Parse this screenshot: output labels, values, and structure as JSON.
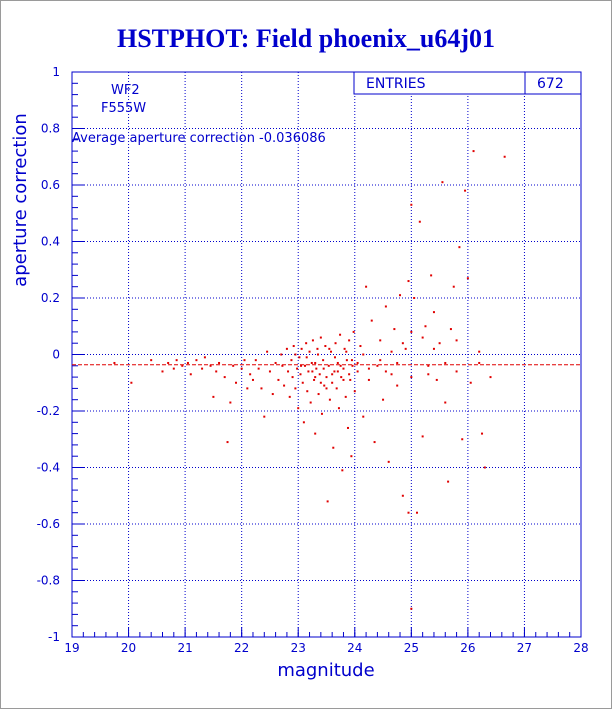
{
  "page": {
    "title": "HSTPHOT: Field phoenix_u64j01"
  },
  "chart_data": {
    "type": "scatter",
    "title": "HSTPHOT: Field phoenix_u64j01",
    "xlabel": "magnitude",
    "ylabel": "aperture correction",
    "xlim": [
      19,
      28
    ],
    "ylim": [
      -1,
      1
    ],
    "x_ticks": [
      "19",
      "20",
      "21",
      "22",
      "23",
      "24",
      "25",
      "26",
      "27",
      "28"
    ],
    "y_ticks": [
      "1",
      "0.8",
      "0.6",
      "0.4",
      "0.2",
      "0",
      "-0.2",
      "-0.4",
      "-0.6",
      "-0.8",
      "-1"
    ],
    "grid": true,
    "series_color": "#e00000",
    "line_color": "#0000cc",
    "stats": {
      "label": "ENTRIES",
      "value": "672"
    },
    "annotations": {
      "chip": "WF2",
      "filter": "F555W",
      "average_text": "Average aperture correction -0.036086"
    },
    "average_y": -0.036086,
    "points": [
      [
        19.75,
        -0.03
      ],
      [
        20.05,
        -0.1
      ],
      [
        20.4,
        -0.02
      ],
      [
        20.6,
        -0.06
      ],
      [
        20.7,
        -0.03
      ],
      [
        20.8,
        -0.05
      ],
      [
        20.85,
        -0.02
      ],
      [
        20.95,
        -0.04
      ],
      [
        21.05,
        -0.03
      ],
      [
        21.1,
        -0.07
      ],
      [
        21.2,
        -0.02
      ],
      [
        21.3,
        -0.05
      ],
      [
        21.35,
        -0.01
      ],
      [
        21.45,
        -0.04
      ],
      [
        21.5,
        -0.15
      ],
      [
        21.55,
        -0.06
      ],
      [
        21.6,
        -0.03
      ],
      [
        21.7,
        -0.08
      ],
      [
        21.8,
        -0.17
      ],
      [
        21.75,
        -0.31
      ],
      [
        21.85,
        -0.04
      ],
      [
        21.9,
        -0.1
      ],
      [
        22.0,
        -0.05
      ],
      [
        22.05,
        -0.02
      ],
      [
        22.1,
        -0.12
      ],
      [
        22.15,
        -0.07
      ],
      [
        22.2,
        -0.09
      ],
      [
        22.25,
        -0.02
      ],
      [
        22.3,
        -0.05
      ],
      [
        22.35,
        -0.12
      ],
      [
        22.4,
        -0.22
      ],
      [
        22.45,
        0.01
      ],
      [
        22.5,
        -0.06
      ],
      [
        22.55,
        -0.14
      ],
      [
        22.6,
        -0.03
      ],
      [
        22.65,
        -0.09
      ],
      [
        22.7,
        0.0
      ],
      [
        22.72,
        -0.04
      ],
      [
        22.75,
        -0.11
      ],
      [
        22.8,
        0.02
      ],
      [
        22.82,
        -0.06
      ],
      [
        22.85,
        -0.15
      ],
      [
        22.88,
        -0.02
      ],
      [
        22.9,
        -0.08
      ],
      [
        22.92,
        0.03
      ],
      [
        22.95,
        -0.12
      ],
      [
        22.98,
        -0.05
      ],
      [
        23.0,
        -0.19
      ],
      [
        23.02,
        -0.01
      ],
      [
        23.04,
        -0.07
      ],
      [
        23.06,
        0.02
      ],
      [
        23.08,
        -0.1
      ],
      [
        23.1,
        -0.24
      ],
      [
        23.12,
        -0.04
      ],
      [
        23.14,
        0.04
      ],
      [
        23.16,
        -0.13
      ],
      [
        23.18,
        -0.06
      ],
      [
        23.2,
        0.01
      ],
      [
        23.22,
        -0.17
      ],
      [
        23.24,
        -0.03
      ],
      [
        23.26,
        0.05
      ],
      [
        23.28,
        -0.09
      ],
      [
        23.3,
        -0.28
      ],
      [
        23.32,
        -0.05
      ],
      [
        23.34,
        0.02
      ],
      [
        23.36,
        -0.14
      ],
      [
        23.38,
        -0.07
      ],
      [
        23.4,
        0.06
      ],
      [
        23.42,
        -0.21
      ],
      [
        23.44,
        -0.02
      ],
      [
        23.46,
        -0.11
      ],
      [
        23.48,
        0.03
      ],
      [
        23.5,
        -0.08
      ],
      [
        23.52,
        -0.52
      ],
      [
        23.54,
        -0.04
      ],
      [
        23.56,
        -0.16
      ],
      [
        23.58,
        0.01
      ],
      [
        23.6,
        -0.1
      ],
      [
        23.62,
        -0.33
      ],
      [
        23.64,
        -0.06
      ],
      [
        23.66,
        0.04
      ],
      [
        23.68,
        -0.12
      ],
      [
        23.7,
        -0.03
      ],
      [
        23.72,
        -0.19
      ],
      [
        23.74,
        0.07
      ],
      [
        23.76,
        -0.08
      ],
      [
        23.78,
        -0.41
      ],
      [
        23.8,
        -0.05
      ],
      [
        23.82,
        0.02
      ],
      [
        23.84,
        -0.15
      ],
      [
        23.86,
        -0.02
      ],
      [
        23.88,
        -0.26
      ],
      [
        23.9,
        0.05
      ],
      [
        23.92,
        -0.09
      ],
      [
        23.94,
        -0.36
      ],
      [
        23.96,
        -0.04
      ],
      [
        23.98,
        0.08
      ],
      [
        24.0,
        -0.13
      ],
      [
        24.05,
        -0.06
      ],
      [
        24.1,
        0.03
      ],
      [
        24.15,
        -0.22
      ],
      [
        24.2,
        0.24
      ],
      [
        24.25,
        -0.09
      ],
      [
        24.3,
        0.12
      ],
      [
        24.35,
        -0.31
      ],
      [
        24.4,
        -0.04
      ],
      [
        24.45,
        0.05
      ],
      [
        24.5,
        -0.16
      ],
      [
        24.55,
        0.17
      ],
      [
        24.6,
        -0.38
      ],
      [
        24.65,
        -0.07
      ],
      [
        24.7,
        0.09
      ],
      [
        24.75,
        -0.11
      ],
      [
        24.8,
        0.21
      ],
      [
        24.85,
        -0.5
      ],
      [
        24.9,
        0.02
      ],
      [
        24.95,
        0.26
      ],
      [
        25.0,
        -0.08
      ],
      [
        25.05,
        0.2
      ],
      [
        25.1,
        -0.56
      ],
      [
        25.15,
        0.47
      ],
      [
        25.2,
        -0.29
      ],
      [
        25.25,
        0.1
      ],
      [
        25.3,
        -0.04
      ],
      [
        25.35,
        0.28
      ],
      [
        25.4,
        0.15
      ],
      [
        25.45,
        -0.09
      ],
      [
        25.5,
        0.04
      ],
      [
        25.55,
        0.61
      ],
      [
        25.6,
        -0.17
      ],
      [
        25.65,
        -0.45
      ],
      [
        25.7,
        0.09
      ],
      [
        25.75,
        0.24
      ],
      [
        25.8,
        -0.06
      ],
      [
        25.85,
        0.38
      ],
      [
        25.9,
        -0.3
      ],
      [
        25.95,
        0.58
      ],
      [
        26.0,
        0.27
      ],
      [
        26.05,
        -0.1
      ],
      [
        26.1,
        0.72
      ],
      [
        26.2,
        0.01
      ],
      [
        26.25,
        -0.28
      ],
      [
        26.3,
        -0.4
      ],
      [
        26.4,
        -0.08
      ],
      [
        26.65,
        0.7
      ],
      [
        25.0,
        0.53
      ],
      [
        25.0,
        -0.9
      ],
      [
        24.95,
        -0.56
      ],
      [
        23.3,
        -0.03
      ],
      [
        23.35,
        0.0
      ],
      [
        23.45,
        -0.05
      ],
      [
        23.55,
        0.02
      ],
      [
        23.65,
        -0.01
      ],
      [
        23.75,
        -0.04
      ],
      [
        23.85,
        0.01
      ],
      [
        23.95,
        -0.02
      ],
      [
        23.25,
        -0.06
      ],
      [
        23.15,
        -0.01
      ],
      [
        23.05,
        -0.04
      ],
      [
        22.95,
        0.0
      ],
      [
        23.4,
        -0.1
      ],
      [
        23.6,
        -0.07
      ],
      [
        23.8,
        -0.09
      ],
      [
        23.5,
        -0.12
      ],
      [
        23.7,
        -0.06
      ],
      [
        23.3,
        -0.08
      ],
      [
        23.9,
        -0.07
      ],
      [
        24.05,
        -0.03
      ],
      [
        24.15,
        0.0
      ],
      [
        24.25,
        -0.05
      ],
      [
        24.45,
        -0.02
      ],
      [
        24.55,
        -0.06
      ],
      [
        24.65,
        0.01
      ],
      [
        24.75,
        -0.03
      ],
      [
        24.85,
        0.04
      ],
      [
        25.0,
        0.08
      ],
      [
        25.2,
        0.06
      ],
      [
        25.3,
        -0.07
      ],
      [
        25.4,
        0.02
      ],
      [
        25.6,
        -0.03
      ],
      [
        25.8,
        0.05
      ],
      [
        26.2,
        -0.03
      ]
    ]
  }
}
